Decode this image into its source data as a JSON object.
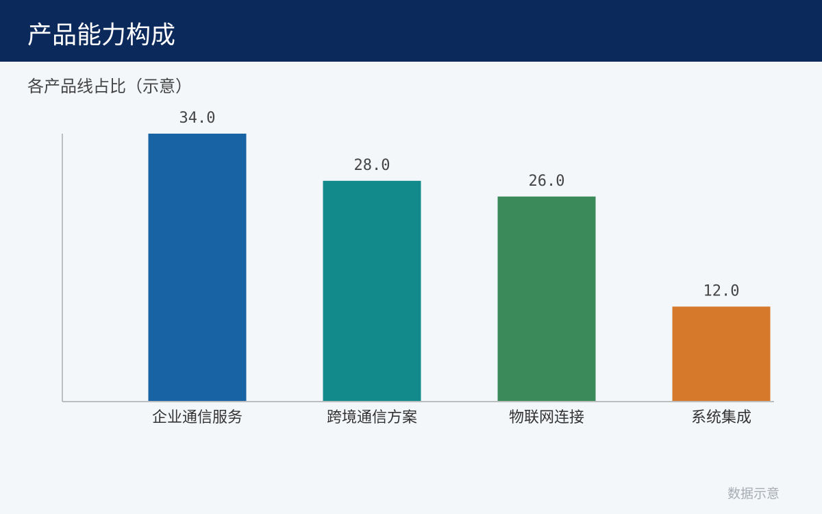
{
  "header": {
    "title": "产品能力构成"
  },
  "chart_data": {
    "type": "bar",
    "subtitle": "各产品线占比（示意）",
    "categories": [
      "企业通信服务",
      "跨境通信方案",
      "物联网连接",
      "系统集成"
    ],
    "values": [
      34,
      28,
      26,
      12
    ],
    "value_labels": [
      "34.0",
      "28.0",
      "26.0",
      "12.0"
    ],
    "colors": [
      "#1763a3",
      "#128a8c",
      "#3a8a5a",
      "#d6792a"
    ],
    "ylim": [
      0,
      34
    ]
  },
  "footer": {
    "note": "数据示意"
  }
}
